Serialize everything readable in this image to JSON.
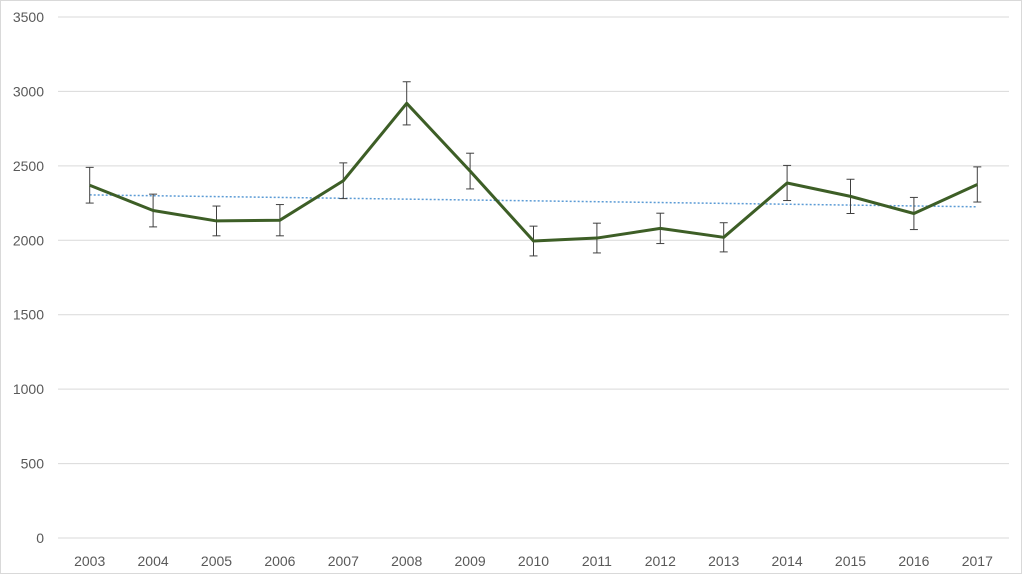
{
  "chart_data": {
    "type": "line",
    "title": "",
    "xlabel": "",
    "ylabel": "",
    "categories": [
      "2003",
      "2004",
      "2005",
      "2006",
      "2007",
      "2008",
      "2009",
      "2010",
      "2011",
      "2012",
      "2013",
      "2014",
      "2015",
      "2016",
      "2017"
    ],
    "ylim": [
      0,
      3500
    ],
    "yticks": [
      "0",
      "500",
      "1000",
      "1500",
      "2000",
      "2500",
      "3000",
      "3500"
    ],
    "grid": "horizontal",
    "legend": "none",
    "series": [
      {
        "values": [
          2370,
          2200,
          2130,
          2135,
          2400,
          2920,
          2465,
          1995,
          2015,
          2080,
          2020,
          2385,
          2295,
          2180,
          2375
        ],
        "error": [
          120,
          110,
          100,
          105,
          120,
          145,
          120,
          100,
          100,
          102,
          98,
          118,
          115,
          108,
          118
        ],
        "color": "#3d5e26"
      }
    ],
    "trendline": {
      "type": "linear",
      "start": 2305,
      "end": 2225,
      "color": "#5b9bd5"
    }
  }
}
